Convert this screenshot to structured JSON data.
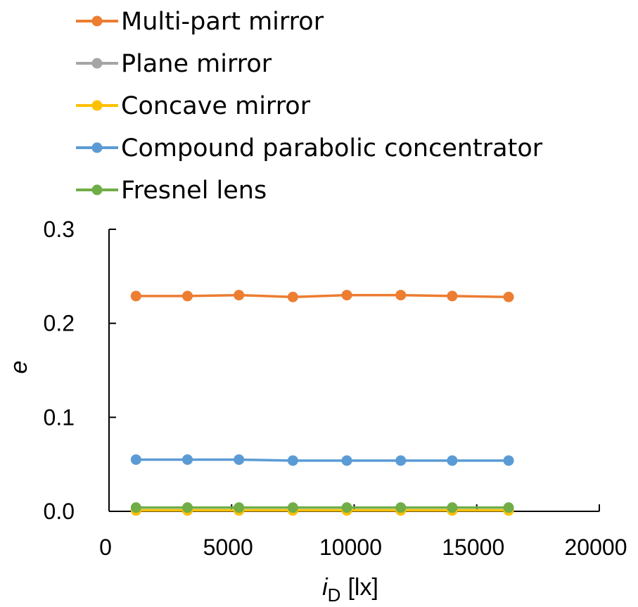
{
  "chart_data": {
    "type": "line",
    "title": "",
    "xlabel": {
      "symbol": "i",
      "subscript": "D",
      "unit": "[lx]"
    },
    "ylabel": "e",
    "xlim": [
      0,
      20000
    ],
    "ylim": [
      0,
      0.3
    ],
    "x_ticks": [
      "0",
      "5000",
      "10000",
      "15000",
      "20000"
    ],
    "y_ticks": [
      "0.0",
      "0.1",
      "0.2",
      "0.3"
    ],
    "x": [
      1100,
      3200,
      5300,
      7500,
      9700,
      11900,
      14000,
      16300
    ],
    "grid": false,
    "legend_position": "top",
    "series": [
      {
        "name": "Multi-part mirror",
        "color": "#ED7D31",
        "values": [
          0.229,
          0.229,
          0.23,
          0.228,
          0.23,
          0.23,
          0.229,
          0.228
        ]
      },
      {
        "name": "Plane mirror",
        "color": "#A5A5A5",
        "values": [
          0.001,
          0.001,
          0.001,
          0.001,
          0.001,
          0.001,
          0.001,
          0.001
        ]
      },
      {
        "name": "Concave mirror",
        "color": "#FFC000",
        "values": [
          0.001,
          0.001,
          0.001,
          0.001,
          0.001,
          0.001,
          0.001,
          0.001
        ]
      },
      {
        "name": "Compound parabolic concentrator",
        "color": "#5B9BD5",
        "values": [
          0.055,
          0.055,
          0.055,
          0.054,
          0.054,
          0.054,
          0.054,
          0.054
        ]
      },
      {
        "name": "Fresnel lens",
        "color": "#70AD47",
        "values": [
          0.004,
          0.004,
          0.004,
          0.004,
          0.004,
          0.004,
          0.004,
          0.004
        ]
      }
    ]
  }
}
